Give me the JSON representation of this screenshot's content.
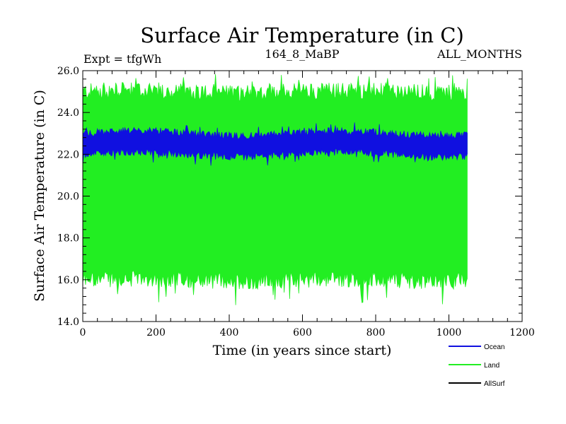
{
  "chart_data": {
    "type": "line",
    "title": "Surface Air Temperature (in C)",
    "subtitle_left": "Expt = tfgWh",
    "subtitle_center": "164_8_MaBP",
    "subtitle_right": "ALL_MONTHS",
    "xlabel": "Time (in years since start)",
    "ylabel": "Surface Air Temperature (in C)",
    "xlim": [
      0,
      1200
    ],
    "ylim": [
      14.0,
      26.0
    ],
    "x_ticks": [
      0,
      200,
      400,
      600,
      800,
      1000,
      1200
    ],
    "x_tick_labels": [
      "0",
      "200",
      "400",
      "600",
      "800",
      "1000",
      "1200"
    ],
    "y_ticks": [
      14.0,
      16.0,
      18.0,
      20.0,
      22.0,
      24.0,
      26.0
    ],
    "y_tick_labels": [
      "14.0",
      "16.0",
      "18.0",
      "20.0",
      "22.0",
      "24.0",
      "26.0"
    ],
    "data_x_range": [
      0,
      1050
    ],
    "series": [
      {
        "name": "Land",
        "color": "#22ee22",
        "band_low": 16.0,
        "band_high": 25.0,
        "min": 14.8,
        "max": 25.9
      },
      {
        "name": "Ocean",
        "color": "#1010e0",
        "band_low": 22.0,
        "band_high": 23.0,
        "min": 21.5,
        "max": 23.5
      },
      {
        "name": "AllSurf",
        "color": "#000000"
      }
    ],
    "legend": {
      "placement": "bottom-right",
      "entries": [
        "Ocean",
        "Land",
        "AllSurf"
      ]
    }
  }
}
